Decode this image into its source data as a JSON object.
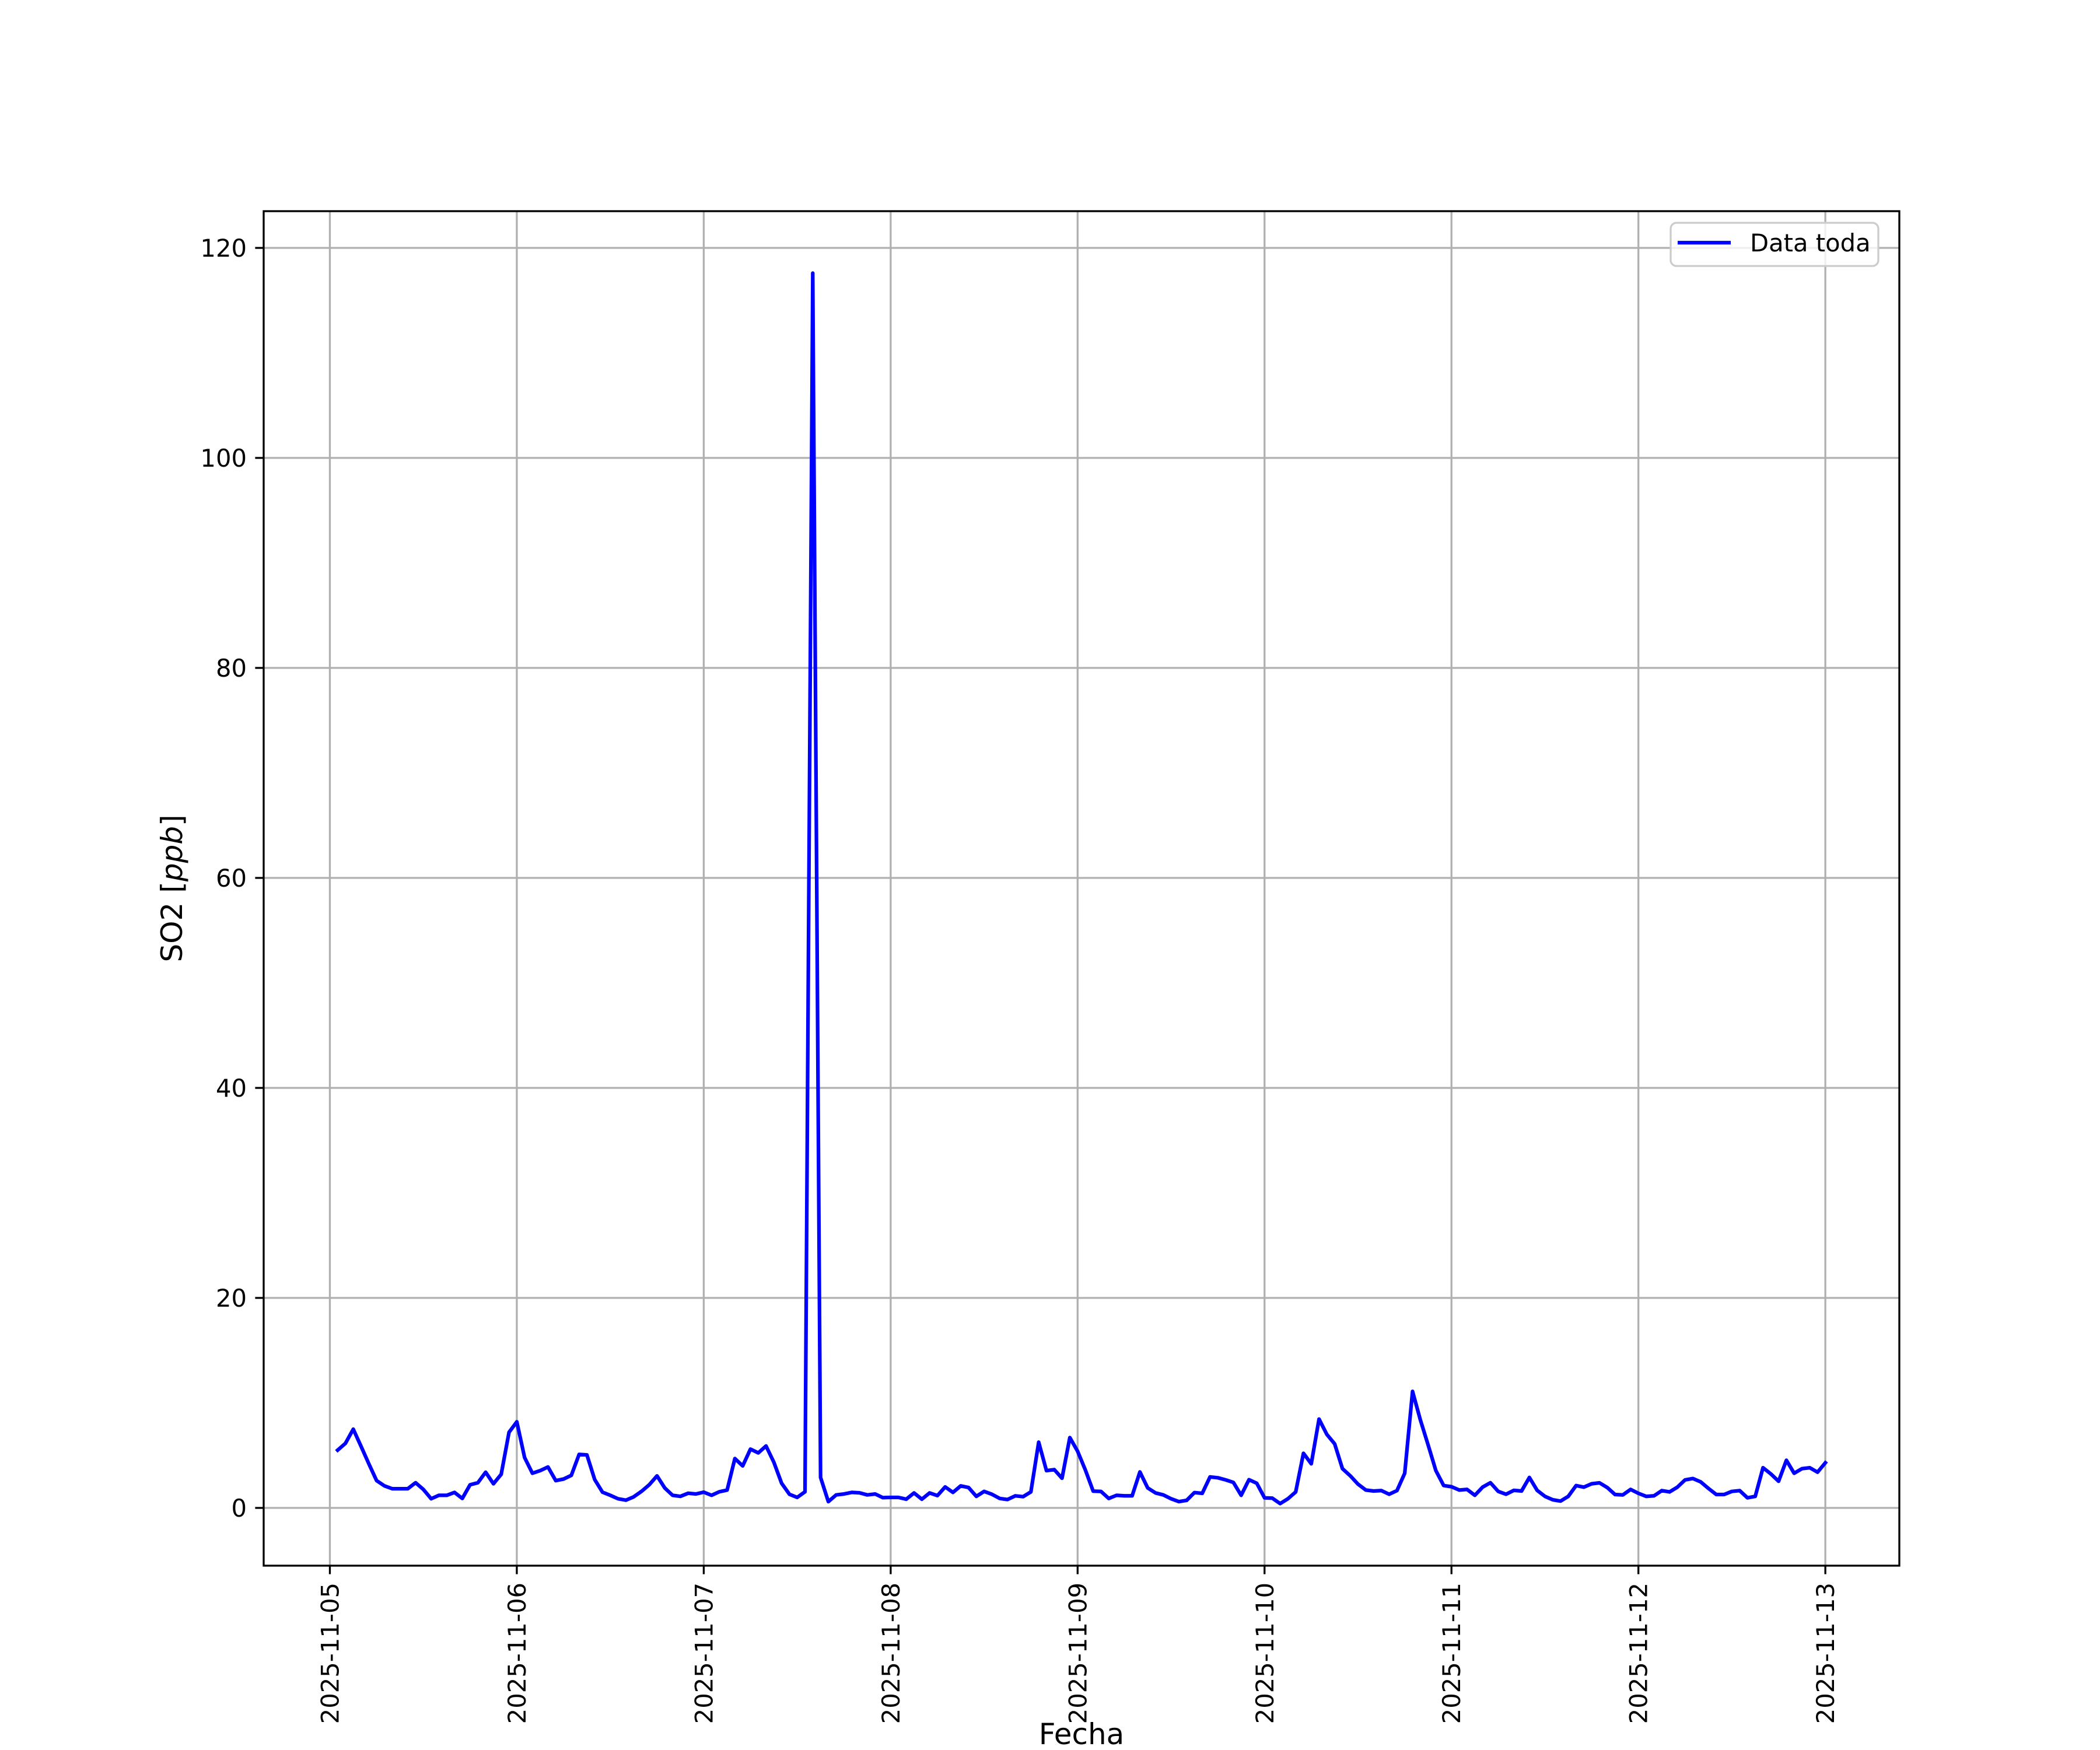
{
  "chart_data": {
    "type": "line",
    "title": "",
    "xlabel": "Fecha",
    "ylabel_main": "SO2 ",
    "ylabel_unit": "ppb",
    "ylabel_unit_style": "italic, in square brackets",
    "ylim": [
      -5.5,
      123.5
    ],
    "xlim": [
      "2025-11-04 15:30",
      "2025-11-13 09:30"
    ],
    "grid": true,
    "legend_position": "top-right",
    "x_tick_labels": [
      "2025-11-05",
      "2025-11-06",
      "2025-11-07",
      "2025-11-08",
      "2025-11-09",
      "2025-11-10",
      "2025-11-11",
      "2025-11-12",
      "2025-11-13"
    ],
    "y_ticks": [
      0,
      20,
      40,
      60,
      80,
      100,
      120
    ],
    "y_tick_labels": [
      "0",
      "20",
      "40",
      "60",
      "80",
      "100",
      "120"
    ],
    "series": [
      {
        "name": "Data toda",
        "color": "#0000ff",
        "x": [
          "2025-11-05 01:00",
          "2025-11-05 02:00",
          "2025-11-05 03:00",
          "2025-11-05 04:00",
          "2025-11-05 05:00",
          "2025-11-05 06:00",
          "2025-11-05 07:00",
          "2025-11-05 08:00",
          "2025-11-05 09:00",
          "2025-11-05 10:00",
          "2025-11-05 11:00",
          "2025-11-05 12:00",
          "2025-11-05 13:00",
          "2025-11-05 14:00",
          "2025-11-05 15:00",
          "2025-11-05 16:00",
          "2025-11-05 17:00",
          "2025-11-05 18:00",
          "2025-11-05 19:00",
          "2025-11-05 20:00",
          "2025-11-05 21:00",
          "2025-11-05 22:00",
          "2025-11-05 23:00",
          "2025-11-06 00:00",
          "2025-11-06 01:00",
          "2025-11-06 02:00",
          "2025-11-06 03:00",
          "2025-11-06 04:00",
          "2025-11-06 05:00",
          "2025-11-06 06:00",
          "2025-11-06 07:00",
          "2025-11-06 08:00",
          "2025-11-06 09:00",
          "2025-11-06 10:00",
          "2025-11-06 11:00",
          "2025-11-06 12:00",
          "2025-11-06 13:00",
          "2025-11-06 14:00",
          "2025-11-06 15:00",
          "2025-11-06 16:00",
          "2025-11-06 17:00",
          "2025-11-06 18:00",
          "2025-11-06 19:00",
          "2025-11-06 20:00",
          "2025-11-06 21:00",
          "2025-11-06 22:00",
          "2025-11-06 23:00",
          "2025-11-07 00:00",
          "2025-11-07 01:00",
          "2025-11-07 02:00",
          "2025-11-07 03:00",
          "2025-11-07 04:00",
          "2025-11-07 05:00",
          "2025-11-07 06:00",
          "2025-11-07 07:00",
          "2025-11-07 08:00",
          "2025-11-07 09:00",
          "2025-11-07 10:00",
          "2025-11-07 11:00",
          "2025-11-07 12:00",
          "2025-11-07 13:00",
          "2025-11-07 14:00",
          "2025-11-07 15:00",
          "2025-11-07 16:00",
          "2025-11-07 17:00",
          "2025-11-07 18:00",
          "2025-11-07 19:00",
          "2025-11-07 20:00",
          "2025-11-07 21:00",
          "2025-11-07 22:00",
          "2025-11-07 23:00",
          "2025-11-08 00:00",
          "2025-11-08 01:00",
          "2025-11-08 02:00",
          "2025-11-08 03:00",
          "2025-11-08 04:00",
          "2025-11-08 05:00",
          "2025-11-08 06:00",
          "2025-11-08 07:00",
          "2025-11-08 08:00",
          "2025-11-08 09:00",
          "2025-11-08 10:00",
          "2025-11-08 11:00",
          "2025-11-08 12:00",
          "2025-11-08 13:00",
          "2025-11-08 14:00",
          "2025-11-08 15:00",
          "2025-11-08 16:00",
          "2025-11-08 17:00",
          "2025-11-08 18:00",
          "2025-11-08 19:00",
          "2025-11-08 20:00",
          "2025-11-08 21:00",
          "2025-11-08 22:00",
          "2025-11-08 23:00",
          "2025-11-09 00:00",
          "2025-11-09 01:00",
          "2025-11-09 02:00",
          "2025-11-09 03:00",
          "2025-11-09 04:00",
          "2025-11-09 05:00",
          "2025-11-09 06:00",
          "2025-11-09 07:00",
          "2025-11-09 08:00",
          "2025-11-09 09:00",
          "2025-11-09 10:00",
          "2025-11-09 11:00",
          "2025-11-09 12:00",
          "2025-11-09 13:00",
          "2025-11-09 14:00",
          "2025-11-09 15:00",
          "2025-11-09 16:00",
          "2025-11-09 17:00",
          "2025-11-09 18:00",
          "2025-11-09 19:00",
          "2025-11-09 20:00",
          "2025-11-09 21:00",
          "2025-11-09 22:00",
          "2025-11-09 23:00",
          "2025-11-10 00:00",
          "2025-11-10 01:00",
          "2025-11-10 02:00",
          "2025-11-10 03:00",
          "2025-11-10 04:00",
          "2025-11-10 05:00",
          "2025-11-10 06:00",
          "2025-11-10 07:00",
          "2025-11-10 08:00",
          "2025-11-10 09:00",
          "2025-11-10 10:00",
          "2025-11-10 11:00",
          "2025-11-10 12:00",
          "2025-11-10 13:00",
          "2025-11-10 14:00",
          "2025-11-10 15:00",
          "2025-11-10 16:00",
          "2025-11-10 17:00",
          "2025-11-10 18:00",
          "2025-11-10 19:00",
          "2025-11-10 20:00",
          "2025-11-10 21:00",
          "2025-11-10 22:00",
          "2025-11-10 23:00",
          "2025-11-11 00:00",
          "2025-11-11 01:00",
          "2025-11-11 02:00",
          "2025-11-11 03:00",
          "2025-11-11 04:00",
          "2025-11-11 05:00",
          "2025-11-11 06:00",
          "2025-11-11 07:00",
          "2025-11-11 08:00",
          "2025-11-11 09:00",
          "2025-11-11 10:00",
          "2025-11-11 11:00",
          "2025-11-11 12:00",
          "2025-11-11 13:00",
          "2025-11-11 14:00",
          "2025-11-11 15:00",
          "2025-11-11 16:00",
          "2025-11-11 17:00",
          "2025-11-11 18:00",
          "2025-11-11 19:00",
          "2025-11-11 20:00",
          "2025-11-11 21:00",
          "2025-11-11 22:00",
          "2025-11-11 23:00",
          "2025-11-12 00:00",
          "2025-11-12 01:00",
          "2025-11-12 02:00",
          "2025-11-12 03:00",
          "2025-11-12 04:00",
          "2025-11-12 05:00",
          "2025-11-12 06:00",
          "2025-11-12 07:00",
          "2025-11-12 08:00",
          "2025-11-12 09:00",
          "2025-11-12 10:00",
          "2025-11-12 11:00",
          "2025-11-12 12:00",
          "2025-11-12 13:00",
          "2025-11-12 14:00",
          "2025-11-12 15:00",
          "2025-11-12 16:00",
          "2025-11-12 17:00",
          "2025-11-12 18:00",
          "2025-11-12 19:00",
          "2025-11-12 20:00",
          "2025-11-12 21:00",
          "2025-11-12 22:00",
          "2025-11-12 23:00",
          "2025-11-13 00:00"
        ],
        "values": [
          5.5,
          6.15,
          7.5,
          5.87,
          4.2,
          2.6,
          2.1,
          1.83,
          1.83,
          1.83,
          2.4,
          1.76,
          0.87,
          1.2,
          1.2,
          1.48,
          0.9,
          2.2,
          2.4,
          3.4,
          2.3,
          3.2,
          7.2,
          8.2,
          4.8,
          3.3,
          3.55,
          3.9,
          2.6,
          2.75,
          3.1,
          5.1,
          5.05,
          2.7,
          1.5,
          1.2,
          0.87,
          0.74,
          1.05,
          1.57,
          2.2,
          3.05,
          1.9,
          1.2,
          1.1,
          1.4,
          1.33,
          1.5,
          1.2,
          1.54,
          1.7,
          4.7,
          4.0,
          5.6,
          5.24,
          5.9,
          4.35,
          2.35,
          1.3,
          1.0,
          1.54,
          117.6,
          2.9,
          0.6,
          1.24,
          1.33,
          1.48,
          1.44,
          1.24,
          1.33,
          0.98,
          1.0,
          1.0,
          0.83,
          1.43,
          0.83,
          1.43,
          1.17,
          2.0,
          1.48,
          2.1,
          1.94,
          1.1,
          1.57,
          1.3,
          0.9,
          0.8,
          1.15,
          1.07,
          1.52,
          6.26,
          3.55,
          3.65,
          2.83,
          6.7,
          5.4,
          3.6,
          1.6,
          1.57,
          0.9,
          1.2,
          1.15,
          1.15,
          3.43,
          1.9,
          1.43,
          1.24,
          0.87,
          0.6,
          0.72,
          1.46,
          1.39,
          2.95,
          2.87,
          2.67,
          2.43,
          1.2,
          2.69,
          2.35,
          0.96,
          0.93,
          0.41,
          0.87,
          1.52,
          5.2,
          4.2,
          8.46,
          7.0,
          6.1,
          3.74,
          3.06,
          2.26,
          1.7,
          1.61,
          1.65,
          1.3,
          1.65,
          3.3,
          11.1,
          8.4,
          6.0,
          3.55,
          2.13,
          2.02,
          1.7,
          1.76,
          1.2,
          1.98,
          2.4,
          1.57,
          1.3,
          1.67,
          1.61,
          2.9,
          1.67,
          1.1,
          0.78,
          0.65,
          1.1,
          2.13,
          1.98,
          2.3,
          2.39,
          1.94,
          1.28,
          1.24,
          1.76,
          1.39,
          1.1,
          1.15,
          1.65,
          1.52,
          1.98,
          2.67,
          2.8,
          2.48,
          1.85,
          1.28,
          1.28,
          1.57,
          1.65,
          0.96,
          1.1,
          3.83,
          3.24,
          2.54,
          4.54,
          3.3,
          3.74,
          3.83,
          3.4,
          4.3
        ]
      }
    ]
  }
}
